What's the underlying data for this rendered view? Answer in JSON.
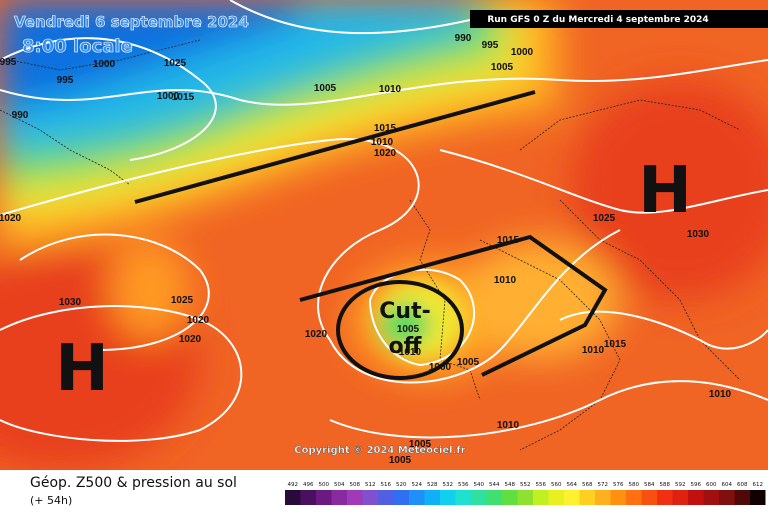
{
  "header": {
    "valid_date": "Vendredi 6 septembre 2024",
    "valid_time": "8:00 locale",
    "run": "Run GFS 0 Z du Mercredi 4 septembre 2024"
  },
  "map": {
    "high_labels": [
      "H",
      "H"
    ],
    "cutoff_label": [
      "Cut-",
      "off"
    ],
    "isobar_labels": [
      990,
      995,
      1000,
      1005,
      995,
      1000,
      995,
      1025,
      1000,
      1015,
      990,
      1005,
      1010,
      1015,
      1010,
      1020,
      1020,
      1025,
      1030,
      1015,
      1010,
      1030,
      1025,
      1020,
      1020,
      1020,
      1005,
      1010,
      1005,
      1000,
      1010,
      1015,
      1010,
      1010,
      1005,
      1005
    ]
  },
  "footer": {
    "copyright": "Copyright © 2024 Meteociel.fr",
    "product": "Géop. Z500 & pression au sol",
    "lead": "(+ 54h)",
    "colorbar_labels": [
      492,
      496,
      500,
      504,
      508,
      512,
      516,
      520,
      524,
      528,
      532,
      536,
      540,
      544,
      548,
      552,
      556,
      560,
      564,
      568,
      572,
      576,
      580,
      584,
      588,
      592,
      596,
      600,
      604,
      608,
      612
    ],
    "colorbar_colors": [
      "#2a0a3a",
      "#4a1060",
      "#6a1a80",
      "#8a2aa0",
      "#a03ab8",
      "#8050d0",
      "#5060e0",
      "#3070f0",
      "#2090f8",
      "#10b0f8",
      "#10d0f0",
      "#20e0d0",
      "#30e0a0",
      "#40e070",
      "#60e040",
      "#90e030",
      "#c0f020",
      "#e8f020",
      "#fff030",
      "#ffd020",
      "#ffb020",
      "#ff9010",
      "#ff7010",
      "#f85010",
      "#f03010",
      "#e02010",
      "#c01010",
      "#a01010",
      "#801010",
      "#500808",
      "#100000"
    ]
  }
}
